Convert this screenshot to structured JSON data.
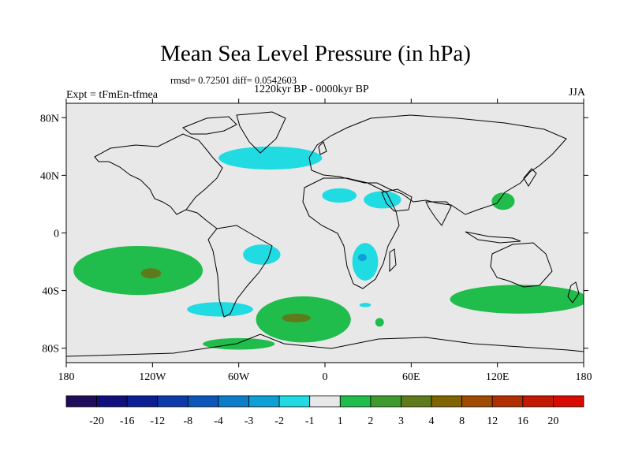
{
  "title": "Mean Sea Level Pressure (in hPa)",
  "stats": "rmsd= 0.72501 diff= 0.0542603",
  "period": "1220kyr BP - 0000kyr BP",
  "experiment": "Expt = tFmEn-tfmea",
  "season": "JJA",
  "map": {
    "background_color": "#e8e8e8",
    "lat_ticks": [
      {
        "value": 80,
        "label": "80N"
      },
      {
        "value": 40,
        "label": "40N"
      },
      {
        "value": 0,
        "label": "0"
      },
      {
        "value": -40,
        "label": "40S"
      },
      {
        "value": -80,
        "label": "80S"
      }
    ],
    "lon_ticks": [
      {
        "value": -180,
        "label": "180"
      },
      {
        "value": -120,
        "label": "120W"
      },
      {
        "value": -60,
        "label": "60W"
      },
      {
        "value": 0,
        "label": "0"
      },
      {
        "value": 60,
        "label": "60E"
      },
      {
        "value": 120,
        "label": "120E"
      },
      {
        "value": 180,
        "label": "180"
      }
    ],
    "anomalies": [
      {
        "name": "north-atlantic-negative",
        "category": "-2 to -1",
        "color": "#21dbe3",
        "lon": -38,
        "lat": 52,
        "rx": 36,
        "ry": 8
      },
      {
        "name": "north-africa-negative",
        "category": "-2 to -1",
        "color": "#21dbe3",
        "lon": 10,
        "lat": 26,
        "rx": 12,
        "ry": 5
      },
      {
        "name": "arabia-negative",
        "category": "-2 to -1",
        "color": "#21dbe3",
        "lon": 40,
        "lat": 23,
        "rx": 13,
        "ry": 6
      },
      {
        "name": "south-america-negative",
        "category": "-2 to -1",
        "color": "#21dbe3",
        "lon": -44,
        "lat": -15,
        "rx": 13,
        "ry": 7
      },
      {
        "name": "southern-africa-negative",
        "category": "-2 to -1",
        "color": "#21dbe3",
        "lon": 28,
        "lat": -20,
        "rx": 9,
        "ry": 13
      },
      {
        "name": "southern-africa-core",
        "category": "-3 to -2",
        "color": "#0ca0d6",
        "lon": 26,
        "lat": -17,
        "rx": 3,
        "ry": 2.5
      },
      {
        "name": "south-atlantic-negative",
        "category": "-2 to -1",
        "color": "#21dbe3",
        "lon": -73,
        "lat": -53,
        "rx": 23,
        "ry": 5
      },
      {
        "name": "south-africa-small-negative",
        "category": "-2 to -1",
        "color": "#21dbe3",
        "lon": 28,
        "lat": -50,
        "rx": 4,
        "ry": 1.5
      },
      {
        "name": "east-asia-positive",
        "category": "1 to 2",
        "color": "#20bc4c",
        "lon": 124,
        "lat": 22,
        "rx": 8,
        "ry": 6
      },
      {
        "name": "south-pacific-positive",
        "category": "1 to 2",
        "color": "#20bc4c",
        "lon": -130,
        "lat": -26,
        "rx": 45,
        "ry": 17
      },
      {
        "name": "south-pacific-core",
        "category": "3 to 4",
        "color": "#5f7a1a",
        "lon": -121,
        "lat": -28,
        "rx": 7,
        "ry": 3.5
      },
      {
        "name": "south-atlantic-positive",
        "category": "1 to 2",
        "color": "#20bc4c",
        "lon": -15,
        "lat": -60,
        "rx": 33,
        "ry": 16
      },
      {
        "name": "south-atlantic-core",
        "category": "3 to 4",
        "color": "#5f7a1a",
        "lon": -20,
        "lat": -59,
        "rx": 10,
        "ry": 3
      },
      {
        "name": "antarctic-coast-positive",
        "category": "1 to 2",
        "color": "#20bc4c",
        "lon": -60,
        "lat": -77,
        "rx": 25,
        "ry": 4
      },
      {
        "name": "indian-ocean-positive",
        "category": "1 to 2",
        "color": "#20bc4c",
        "lon": 135,
        "lat": -46,
        "rx": 48,
        "ry": 10
      },
      {
        "name": "indian-ocean-small-positive",
        "category": "1 to 2",
        "color": "#20bc4c",
        "lon": 38,
        "lat": -62,
        "rx": 3,
        "ry": 3
      }
    ]
  },
  "colorbar": {
    "colors": [
      "#1f0c5a",
      "#0f0f7d",
      "#0b1f93",
      "#0d3aaa",
      "#0b56b8",
      "#0c7dc8",
      "#0ca0d6",
      "#21dbe3",
      "#e8e8e8",
      "#20bc4c",
      "#3f9a2e",
      "#5f7a1a",
      "#806400",
      "#a04b00",
      "#b12e00",
      "#c51800",
      "#d90b00"
    ],
    "labels": [
      "-20",
      "-16",
      "-12",
      "-8",
      "-4",
      "-3",
      "-2",
      "-1",
      "1",
      "2",
      "3",
      "4",
      "8",
      "12",
      "16",
      "20"
    ]
  }
}
